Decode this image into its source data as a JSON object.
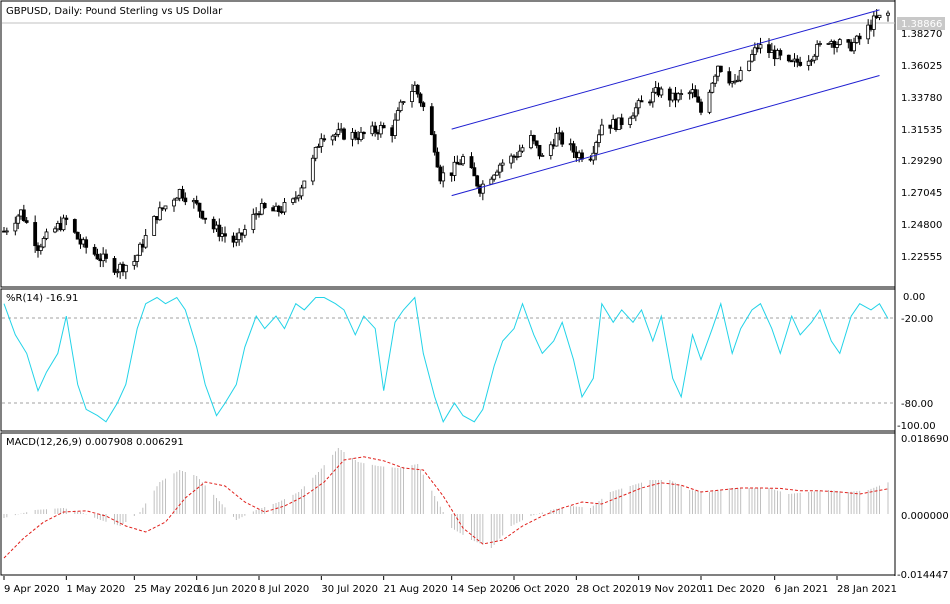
{
  "chart_data": [
    {
      "type": "candlestick",
      "title": "GBPUSD, Daily:  Pound Sterling vs US Dollar",
      "y_ticks": [
        "1.38270",
        "1.36025",
        "1.33780",
        "1.31535",
        "1.29290",
        "1.27045",
        "1.24800",
        "1.22555"
      ],
      "ylim": [
        1.2075,
        1.3948
      ],
      "current_price": "1.38866",
      "trend_channel": {
        "upper": [
          [
            "2020-09-14",
            1.3115
          ],
          [
            "2021-02-12",
            1.3915
          ]
        ],
        "lower": [
          [
            "2020-09-14",
            1.2668
          ],
          [
            "2021-02-12",
            1.3475
          ]
        ]
      },
      "close_path": [
        [
          "2020-04-09",
          1.243
        ],
        [
          "2020-04-15",
          1.256
        ],
        [
          "2020-04-21",
          1.233
        ],
        [
          "2020-04-28",
          1.246
        ],
        [
          "2020-05-01",
          1.25
        ],
        [
          "2020-05-06",
          1.235
        ],
        [
          "2020-05-13",
          1.225
        ],
        [
          "2020-05-19",
          1.218
        ],
        [
          "2020-05-25",
          1.223
        ],
        [
          "2020-05-28",
          1.235
        ],
        [
          "2020-06-02",
          1.254
        ],
        [
          "2020-06-10",
          1.27
        ],
        [
          "2020-06-16",
          1.26
        ],
        [
          "2020-06-22",
          1.245
        ],
        [
          "2020-06-30",
          1.235
        ],
        [
          "2020-07-08",
          1.258
        ],
        [
          "2020-07-14",
          1.256
        ],
        [
          "2020-07-20",
          1.262
        ],
        [
          "2020-07-27",
          1.29
        ],
        [
          "2020-07-30",
          1.308
        ],
        [
          "2020-08-07",
          1.308
        ],
        [
          "2020-08-13",
          1.307
        ],
        [
          "2020-08-20",
          1.312
        ],
        [
          "2020-08-24",
          1.31
        ],
        [
          "2020-08-28",
          1.332
        ],
        [
          "2020-09-01",
          1.34
        ],
        [
          "2020-09-04",
          1.326
        ],
        [
          "2020-09-08",
          1.3
        ],
        [
          "2020-09-10",
          1.28
        ],
        [
          "2020-09-14",
          1.283
        ],
        [
          "2020-09-18",
          1.292
        ],
        [
          "2020-09-24",
          1.272
        ],
        [
          "2020-10-01",
          1.288
        ],
        [
          "2020-10-06",
          1.293
        ],
        [
          "2020-10-12",
          1.305
        ],
        [
          "2020-10-16",
          1.292
        ],
        [
          "2020-10-21",
          1.307
        ],
        [
          "2020-10-28",
          1.295
        ],
        [
          "2020-11-02",
          1.294
        ],
        [
          "2020-11-06",
          1.315
        ],
        [
          "2020-11-12",
          1.315
        ],
        [
          "2020-11-19",
          1.327
        ],
        [
          "2020-11-26",
          1.337
        ],
        [
          "2020-12-01",
          1.332
        ],
        [
          "2020-12-08",
          1.336
        ],
        [
          "2020-12-11",
          1.323
        ],
        [
          "2020-12-17",
          1.355
        ],
        [
          "2020-12-23",
          1.341
        ],
        [
          "2020-12-31",
          1.367
        ],
        [
          "2021-01-06",
          1.362
        ],
        [
          "2021-01-11",
          1.354
        ],
        [
          "2021-01-18",
          1.36
        ],
        [
          "2021-01-25",
          1.372
        ],
        [
          "2021-02-01",
          1.366
        ],
        [
          "2021-02-05",
          1.372
        ],
        [
          "2021-02-10",
          1.384
        ],
        [
          "2021-02-15",
          1.3887
        ]
      ]
    },
    {
      "type": "line",
      "title": "%R(14) -16.91",
      "y_ticks": [
        "0.00",
        "-20.00",
        "-80.00",
        "-100.00"
      ],
      "ylim": [
        -105,
        2
      ],
      "levels": [
        -20,
        -80
      ],
      "series": [
        {
          "color": "#22d3e8",
          "points": [
            [
              "2020-04-09",
              -5
            ],
            [
              "2020-04-13",
              -30
            ],
            [
              "2020-04-17",
              -45
            ],
            [
              "2020-04-21",
              -75
            ],
            [
              "2020-04-24",
              -60
            ],
            [
              "2020-04-28",
              -45
            ],
            [
              "2020-05-01",
              -15
            ],
            [
              "2020-05-05",
              -70
            ],
            [
              "2020-05-08",
              -90
            ],
            [
              "2020-05-12",
              -95
            ],
            [
              "2020-05-15",
              -100
            ],
            [
              "2020-05-19",
              -85
            ],
            [
              "2020-05-22",
              -70
            ],
            [
              "2020-05-26",
              -25
            ],
            [
              "2020-05-29",
              -5
            ],
            [
              "2020-06-02",
              0
            ],
            [
              "2020-06-05",
              -5
            ],
            [
              "2020-06-09",
              0
            ],
            [
              "2020-06-12",
              -10
            ],
            [
              "2020-06-16",
              -40
            ],
            [
              "2020-06-19",
              -70
            ],
            [
              "2020-06-23",
              -95
            ],
            [
              "2020-06-26",
              -85
            ],
            [
              "2020-06-30",
              -70
            ],
            [
              "2020-07-03",
              -40
            ],
            [
              "2020-07-07",
              -15
            ],
            [
              "2020-07-10",
              -25
            ],
            [
              "2020-07-14",
              -15
            ],
            [
              "2020-07-17",
              -25
            ],
            [
              "2020-07-21",
              -5
            ],
            [
              "2020-07-24",
              -10
            ],
            [
              "2020-07-28",
              0
            ],
            [
              "2020-07-31",
              0
            ],
            [
              "2020-08-04",
              -5
            ],
            [
              "2020-08-07",
              -10
            ],
            [
              "2020-08-11",
              -30
            ],
            [
              "2020-08-14",
              -15
            ],
            [
              "2020-08-18",
              -25
            ],
            [
              "2020-08-21",
              -75
            ],
            [
              "2020-08-25",
              -20
            ],
            [
              "2020-08-28",
              -10
            ],
            [
              "2020-09-01",
              0
            ],
            [
              "2020-09-04",
              -45
            ],
            [
              "2020-09-08",
              -80
            ],
            [
              "2020-09-11",
              -100
            ],
            [
              "2020-09-15",
              -85
            ],
            [
              "2020-09-18",
              -95
            ],
            [
              "2020-09-22",
              -100
            ],
            [
              "2020-09-25",
              -90
            ],
            [
              "2020-09-29",
              -55
            ],
            [
              "2020-10-02",
              -35
            ],
            [
              "2020-10-06",
              -25
            ],
            [
              "2020-10-09",
              -5
            ],
            [
              "2020-10-13",
              -30
            ],
            [
              "2020-10-16",
              -45
            ],
            [
              "2020-10-20",
              -35
            ],
            [
              "2020-10-23",
              -20
            ],
            [
              "2020-10-27",
              -50
            ],
            [
              "2020-10-30",
              -80
            ],
            [
              "2020-11-03",
              -65
            ],
            [
              "2020-11-06",
              -5
            ],
            [
              "2020-11-10",
              -20
            ],
            [
              "2020-11-13",
              -10
            ],
            [
              "2020-11-17",
              -20
            ],
            [
              "2020-11-20",
              -10
            ],
            [
              "2020-11-24",
              -35
            ],
            [
              "2020-11-27",
              -15
            ],
            [
              "2020-12-01",
              -65
            ],
            [
              "2020-12-04",
              -80
            ],
            [
              "2020-12-08",
              -30
            ],
            [
              "2020-12-11",
              -50
            ],
            [
              "2020-12-15",
              -25
            ],
            [
              "2020-12-18",
              -5
            ],
            [
              "2020-12-22",
              -45
            ],
            [
              "2020-12-25",
              -25
            ],
            [
              "2020-12-29",
              -10
            ],
            [
              "2021-01-01",
              -5
            ],
            [
              "2021-01-05",
              -25
            ],
            [
              "2021-01-08",
              -45
            ],
            [
              "2021-01-12",
              -15
            ],
            [
              "2021-01-15",
              -30
            ],
            [
              "2021-01-19",
              -20
            ],
            [
              "2021-01-22",
              -10
            ],
            [
              "2021-01-26",
              -35
            ],
            [
              "2021-01-29",
              -45
            ],
            [
              "2021-02-02",
              -15
            ],
            [
              "2021-02-05",
              -5
            ],
            [
              "2021-02-09",
              -10
            ],
            [
              "2021-02-12",
              -5
            ],
            [
              "2021-02-15",
              -17
            ]
          ]
        }
      ]
    },
    {
      "type": "histogram+line",
      "title": "MACD(12,26,9) 0.007908 0.006291",
      "y_ticks": [
        "0.018690",
        "0.000000",
        "-0.014447"
      ],
      "ylim": [
        -0.015,
        0.019
      ],
      "series": [
        {
          "kind": "histogram",
          "color": "#c0c0c0",
          "points": [
            [
              "2020-04-09",
              -0.001
            ],
            [
              "2020-04-20",
              0.001
            ],
            [
              "2020-04-30",
              0.0015
            ],
            [
              "2020-05-06",
              0.0005
            ],
            [
              "2020-05-13",
              -0.0015
            ],
            [
              "2020-05-20",
              -0.003
            ],
            [
              "2020-05-27",
              0.0005
            ],
            [
              "2020-06-03",
              0.008
            ],
            [
              "2020-06-10",
              0.011
            ],
            [
              "2020-06-16",
              0.0095
            ],
            [
              "2020-06-23",
              0.004
            ],
            [
              "2020-06-30",
              -0.0015
            ],
            [
              "2020-07-07",
              0.001
            ],
            [
              "2020-07-15",
              0.003
            ],
            [
              "2020-07-22",
              0.0055
            ],
            [
              "2020-07-29",
              0.0105
            ],
            [
              "2020-08-05",
              0.0165
            ],
            [
              "2020-08-12",
              0.013
            ],
            [
              "2020-08-19",
              0.012
            ],
            [
              "2020-08-26",
              0.0115
            ],
            [
              "2020-09-02",
              0.0125
            ],
            [
              "2020-09-08",
              0.0045
            ],
            [
              "2020-09-14",
              -0.0035
            ],
            [
              "2020-09-21",
              -0.0065
            ],
            [
              "2020-09-28",
              -0.0085
            ],
            [
              "2020-10-05",
              -0.003
            ],
            [
              "2020-10-12",
              -0.0005
            ],
            [
              "2020-10-19",
              0.001
            ],
            [
              "2020-10-26",
              0.002
            ],
            [
              "2020-11-02",
              0.0015
            ],
            [
              "2020-11-09",
              0.0055
            ],
            [
              "2020-11-16",
              0.007
            ],
            [
              "2020-11-23",
              0.0085
            ],
            [
              "2020-11-30",
              0.0085
            ],
            [
              "2020-12-07",
              0.006
            ],
            [
              "2020-12-14",
              0.0055
            ],
            [
              "2020-12-21",
              0.0065
            ],
            [
              "2020-12-28",
              0.0065
            ],
            [
              "2021-01-04",
              0.0065
            ],
            [
              "2021-01-11",
              0.005
            ],
            [
              "2021-01-18",
              0.0055
            ],
            [
              "2021-01-25",
              0.006
            ],
            [
              "2021-02-01",
              0.0055
            ],
            [
              "2021-02-08",
              0.006
            ],
            [
              "2021-02-15",
              0.0079
            ]
          ]
        },
        {
          "kind": "signal",
          "color": "#e0201b",
          "points": [
            [
              "2020-04-09",
              -0.011
            ],
            [
              "2020-04-16",
              -0.006
            ],
            [
              "2020-04-23",
              -0.002
            ],
            [
              "2020-04-30",
              0.0005
            ],
            [
              "2020-05-08",
              0.0008
            ],
            [
              "2020-05-15",
              -0.0005
            ],
            [
              "2020-05-22",
              -0.003
            ],
            [
              "2020-05-29",
              -0.0045
            ],
            [
              "2020-06-05",
              -0.002
            ],
            [
              "2020-06-12",
              0.004
            ],
            [
              "2020-06-19",
              0.008
            ],
            [
              "2020-06-26",
              0.007
            ],
            [
              "2020-07-03",
              0.003
            ],
            [
              "2020-07-10",
              0.0005
            ],
            [
              "2020-07-17",
              0.002
            ],
            [
              "2020-07-24",
              0.0045
            ],
            [
              "2020-07-31",
              0.008
            ],
            [
              "2020-08-07",
              0.0135
            ],
            [
              "2020-08-14",
              0.0143
            ],
            [
              "2020-08-21",
              0.0133
            ],
            [
              "2020-08-28",
              0.0115
            ],
            [
              "2020-09-04",
              0.011
            ],
            [
              "2020-09-11",
              0.0045
            ],
            [
              "2020-09-18",
              -0.0035
            ],
            [
              "2020-09-25",
              -0.0075
            ],
            [
              "2020-10-02",
              -0.0065
            ],
            [
              "2020-10-09",
              -0.003
            ],
            [
              "2020-10-16",
              -0.0005
            ],
            [
              "2020-10-23",
              0.0015
            ],
            [
              "2020-10-30",
              0.003
            ],
            [
              "2020-11-06",
              0.0025
            ],
            [
              "2020-11-13",
              0.0045
            ],
            [
              "2020-11-20",
              0.0065
            ],
            [
              "2020-11-27",
              0.0078
            ],
            [
              "2020-12-04",
              0.0072
            ],
            [
              "2020-12-11",
              0.0055
            ],
            [
              "2020-12-18",
              0.006
            ],
            [
              "2020-12-25",
              0.0065
            ],
            [
              "2021-01-01",
              0.0065
            ],
            [
              "2021-01-08",
              0.0064
            ],
            [
              "2021-01-15",
              0.0058
            ],
            [
              "2021-01-22",
              0.0058
            ],
            [
              "2021-01-29",
              0.0055
            ],
            [
              "2021-02-05",
              0.005
            ],
            [
              "2021-02-15",
              0.0063
            ]
          ]
        }
      ]
    }
  ],
  "x_axis": {
    "start": "2020-04-09",
    "end": "2021-02-15",
    "labels": [
      [
        "2020-04-09",
        "9 Apr 2020"
      ],
      [
        "2020-05-01",
        "1 May 2020"
      ],
      [
        "2020-05-25",
        "25 May 2020"
      ],
      [
        "2020-06-16",
        "16 Jun 2020"
      ],
      [
        "2020-07-08",
        "8 Jul 2020"
      ],
      [
        "2020-07-30",
        "30 Jul 2020"
      ],
      [
        "2020-08-21",
        "21 Aug 2020"
      ],
      [
        "2020-09-14",
        "14 Sep 2020"
      ],
      [
        "2020-10-06",
        "6 Oct 2020"
      ],
      [
        "2020-10-28",
        "28 Oct 2020"
      ],
      [
        "2020-11-19",
        "19 Nov 2020"
      ],
      [
        "2020-12-11",
        "11 Dec 2020"
      ],
      [
        "2021-01-06",
        "6 Jan 2021"
      ],
      [
        "2021-01-28",
        "28 Jan 2021"
      ]
    ]
  },
  "colors": {
    "candle_up": "#000000",
    "candle_down": "#000000",
    "channel": "#1f1fd1",
    "grid_dash": "#a0a0a0",
    "price_tag_bg": "#c8c8c8"
  }
}
